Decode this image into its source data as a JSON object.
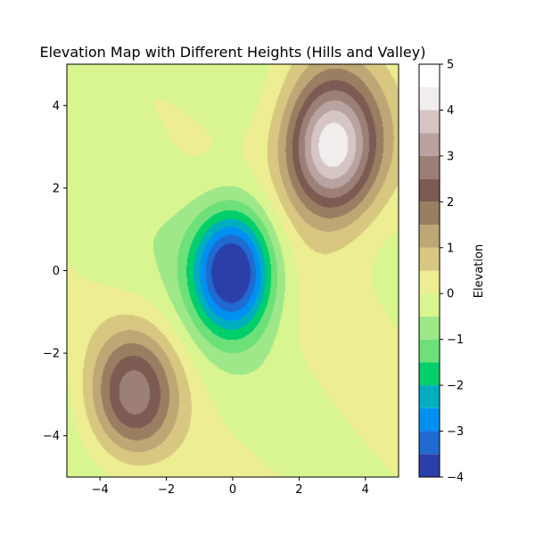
{
  "chart_data": {
    "type": "heatmap",
    "subtype": "filled-contour",
    "title": "Elevation Map with Different Heights (Hills and Valley)",
    "xlabel": "",
    "ylabel": "",
    "xlim": [
      -5,
      5
    ],
    "ylim": [
      -5,
      5
    ],
    "x_ticks": [
      -4,
      -2,
      0,
      2,
      4
    ],
    "y_ticks": [
      -4,
      -2,
      0,
      2,
      4
    ],
    "x_tick_labels": [
      "−4",
      "−2",
      "0",
      "2",
      "4"
    ],
    "y_tick_labels": [
      "−4",
      "−2",
      "0",
      "2",
      "4"
    ],
    "colorbar": {
      "label": "Elevation",
      "range": [
        -4,
        5
      ],
      "tick_values": [
        -4,
        -3,
        -2,
        -1,
        0,
        1,
        2,
        3,
        4,
        5
      ],
      "tick_labels": [
        "−4",
        "−3",
        "−2",
        "−1",
        "0",
        "1",
        "2",
        "3",
        "4",
        "5"
      ]
    },
    "levels": [
      -4.0,
      -3.5,
      -3.0,
      -2.5,
      -2.0,
      -1.5,
      -1.0,
      -0.5,
      0.0,
      0.5,
      1.0,
      1.5,
      2.0,
      2.5,
      3.0,
      3.5,
      4.0,
      4.5,
      5.0
    ],
    "level_colors": [
      "#2b3fa8",
      "#1f6bd1",
      "#0090f2",
      "#00aec0",
      "#00cf6a",
      "#6ee07a",
      "#9fe88a",
      "#d8f590",
      "#eded92",
      "#d8c780",
      "#bea675",
      "#9a7e62",
      "#7d5b52",
      "#9c8078",
      "#b9a29f",
      "#d5c6c4",
      "#f1eded",
      "#ffffff"
    ],
    "features": [
      {
        "name": "hill",
        "center": [
          3,
          3
        ],
        "peak_elevation": 5
      },
      {
        "name": "hill",
        "center": [
          -3,
          -3
        ],
        "peak_elevation": 3
      },
      {
        "name": "valley",
        "center": [
          0,
          0
        ],
        "min_elevation": -4
      }
    ]
  }
}
